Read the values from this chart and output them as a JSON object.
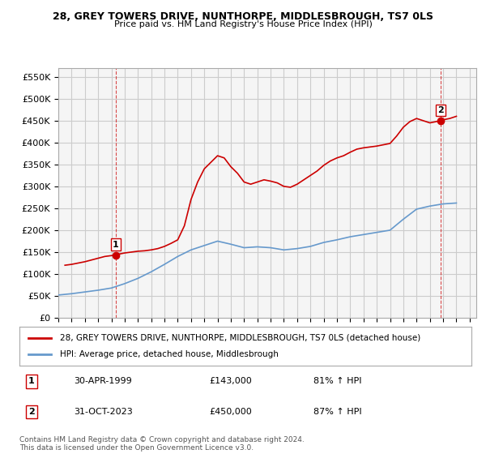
{
  "title1": "28, GREY TOWERS DRIVE, NUNTHORPE, MIDDLESBROUGH, TS7 0LS",
  "title2": "Price paid vs. HM Land Registry's House Price Index (HPI)",
  "ylabel_ticks": [
    "£0",
    "£50K",
    "£100K",
    "£150K",
    "£200K",
    "£250K",
    "£300K",
    "£350K",
    "£400K",
    "£450K",
    "£500K",
    "£550K"
  ],
  "ytick_vals": [
    0,
    50000,
    100000,
    150000,
    200000,
    250000,
    300000,
    350000,
    400000,
    450000,
    500000,
    550000
  ],
  "ylim": [
    0,
    570000
  ],
  "xlim_start": 1995.5,
  "xlim_end": 2026.5,
  "sale1_x": 1999.33,
  "sale1_y": 143000,
  "sale2_x": 2023.83,
  "sale2_y": 450000,
  "sale1_label": "1",
  "sale2_label": "2",
  "sale1_date": "30-APR-1999",
  "sale1_price": "£143,000",
  "sale1_hpi": "81% ↑ HPI",
  "sale2_date": "31-OCT-2023",
  "sale2_price": "£450,000",
  "sale2_hpi": "87% ↑ HPI",
  "legend_line1": "28, GREY TOWERS DRIVE, NUNTHORPE, MIDDLESBROUGH, TS7 0LS (detached house)",
  "legend_line2": "HPI: Average price, detached house, Middlesbrough",
  "footer": "Contains HM Land Registry data © Crown copyright and database right 2024.\nThis data is licensed under the Open Government Licence v3.0.",
  "hpi_color": "#6699cc",
  "sale_color": "#cc0000",
  "vline_color": "#cc0000",
  "grid_color": "#cccccc",
  "bg_color": "#f5f5f5",
  "hpi_years": [
    1995,
    1996,
    1997,
    1998,
    1999,
    2000,
    2001,
    2002,
    2003,
    2004,
    2005,
    2006,
    2007,
    2008,
    2009,
    2010,
    2011,
    2012,
    2013,
    2014,
    2015,
    2016,
    2017,
    2018,
    2019,
    2020,
    2021,
    2022,
    2023,
    2024,
    2025
  ],
  "hpi_vals": [
    52000,
    55000,
    59000,
    63000,
    68000,
    78000,
    90000,
    105000,
    122000,
    140000,
    155000,
    165000,
    175000,
    168000,
    160000,
    162000,
    160000,
    155000,
    158000,
    163000,
    172000,
    178000,
    185000,
    190000,
    195000,
    200000,
    225000,
    248000,
    255000,
    260000,
    262000
  ],
  "sale_years": [
    1995.5,
    1996,
    1996.5,
    1997,
    1997.5,
    1998,
    1998.5,
    1999,
    1999.33,
    1999.5,
    2000,
    2000.5,
    2001,
    2001.5,
    2002,
    2002.5,
    2003,
    2003.5,
    2004,
    2004.5,
    2005,
    2005.5,
    2006,
    2006.5,
    2007,
    2007.5,
    2008,
    2008.5,
    2009,
    2009.5,
    2010,
    2010.5,
    2011,
    2011.5,
    2012,
    2012.5,
    2013,
    2013.5,
    2014,
    2014.5,
    2015,
    2015.5,
    2016,
    2016.5,
    2017,
    2017.5,
    2018,
    2018.5,
    2019,
    2019.5,
    2020,
    2020.5,
    2021,
    2021.5,
    2022,
    2022.5,
    2023,
    2023.5,
    2023.83,
    2024,
    2024.5,
    2025
  ],
  "sale_vals": [
    120000,
    122000,
    125000,
    128000,
    132000,
    136000,
    140000,
    142000,
    143000,
    145000,
    148000,
    150000,
    152000,
    153000,
    155000,
    158000,
    163000,
    170000,
    178000,
    210000,
    270000,
    310000,
    340000,
    355000,
    370000,
    365000,
    345000,
    330000,
    310000,
    305000,
    310000,
    315000,
    312000,
    308000,
    300000,
    298000,
    305000,
    315000,
    325000,
    335000,
    348000,
    358000,
    365000,
    370000,
    378000,
    385000,
    388000,
    390000,
    392000,
    395000,
    398000,
    415000,
    435000,
    448000,
    455000,
    450000,
    445000,
    448000,
    450000,
    452000,
    455000,
    460000
  ]
}
